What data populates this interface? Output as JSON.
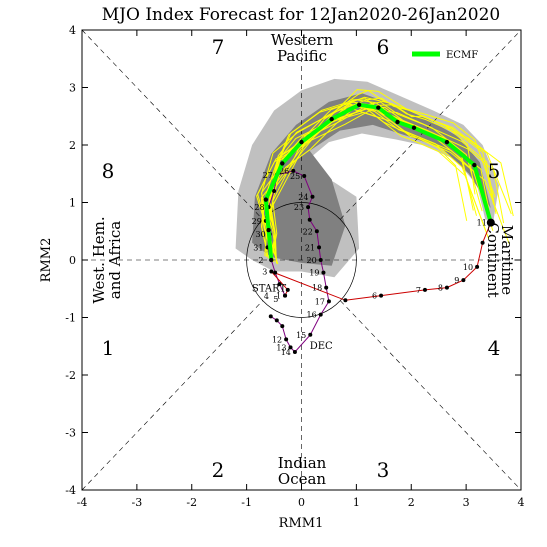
{
  "chart_data": {
    "type": "line",
    "title": "MJO Index Forecast for 12Jan2020-26Jan2020",
    "xlabel": "RMM1",
    "ylabel": "RMM2",
    "xlim": [
      -4,
      4
    ],
    "ylim": [
      -4,
      4
    ],
    "xticks": [
      "-4",
      "-3",
      "-2",
      "-1",
      "0",
      "1",
      "2",
      "3",
      "4"
    ],
    "yticks": [
      "-4",
      "-3",
      "-2",
      "-1",
      "0",
      "1",
      "2",
      "3",
      "4"
    ],
    "legend": {
      "placement": "top-right",
      "entries": [
        {
          "name": "ECMF",
          "color": "#00ff00"
        }
      ]
    },
    "phases": [
      "1",
      "2",
      "3",
      "4",
      "5",
      "6",
      "7",
      "8"
    ],
    "regions": {
      "top": [
        "Western",
        "Pacific"
      ],
      "bottom": [
        "Indian",
        "Ocean"
      ],
      "left": [
        "West. Hem.",
        "and Africa"
      ],
      "right": [
        "Maritime",
        "Continent"
      ]
    },
    "path_labels": {
      "start": "START",
      "dec": "DEC"
    },
    "colors": {
      "observed_dec": "#7f007f",
      "observed_jan": "#cc0000",
      "ensemble": "#ffff00",
      "spread_outer": "#c0c0c0",
      "spread_inner": "#808080",
      "ensemble_mean": "#00ff00"
    },
    "observed_dec": [
      {
        "x": -0.56,
        "y": -0.98
      },
      {
        "x": -0.45,
        "y": -1.05
      },
      {
        "x": -0.35,
        "y": -1.15
      },
      {
        "x": -0.28,
        "y": -1.38
      },
      {
        "x": -0.2,
        "y": -1.52
      },
      {
        "x": -0.12,
        "y": -1.6
      },
      {
        "x": 0.16,
        "y": -1.3
      },
      {
        "x": 0.35,
        "y": -0.95
      },
      {
        "x": 0.5,
        "y": -0.72
      },
      {
        "x": 0.45,
        "y": -0.48
      },
      {
        "x": 0.4,
        "y": -0.22
      },
      {
        "x": 0.35,
        "y": 0.0
      },
      {
        "x": 0.32,
        "y": 0.22
      },
      {
        "x": 0.28,
        "y": 0.5
      },
      {
        "x": 0.15,
        "y": 0.7
      },
      {
        "x": 0.12,
        "y": 0.92
      },
      {
        "x": 0.2,
        "y": 1.1
      },
      {
        "x": 0.05,
        "y": 1.46
      },
      {
        "x": -0.15,
        "y": 1.55
      },
      {
        "x": -0.45,
        "y": 1.48
      },
      {
        "x": -0.5,
        "y": 1.2
      },
      {
        "x": -0.6,
        "y": 0.92
      },
      {
        "x": -0.65,
        "y": 0.68
      },
      {
        "x": -0.58,
        "y": 0.45
      },
      {
        "x": -0.62,
        "y": 0.22
      },
      {
        "x": -0.55,
        "y": 0.0
      },
      {
        "x": -0.48,
        "y": -0.22
      },
      {
        "x": -0.4,
        "y": -0.42
      },
      {
        "x": -0.3,
        "y": -0.62
      }
    ],
    "observed_jan": [
      {
        "x": -0.3,
        "y": -0.62
      },
      {
        "x": -0.25,
        "y": -0.52
      },
      {
        "x": -0.55,
        "y": -0.2
      },
      {
        "x": 0.8,
        "y": -0.7
      },
      {
        "x": 1.45,
        "y": -0.62
      },
      {
        "x": 2.25,
        "y": -0.52
      },
      {
        "x": 2.65,
        "y": -0.48
      },
      {
        "x": 2.95,
        "y": -0.35
      },
      {
        "x": 3.2,
        "y": -0.12
      },
      {
        "x": 3.3,
        "y": 0.3
      },
      {
        "x": 3.45,
        "y": 0.65
      }
    ],
    "observed_labels": [
      {
        "label": "1",
        "x": -0.3,
        "y": -0.62
      },
      {
        "label": "2",
        "x": -0.62,
        "y": 0.0
      },
      {
        "label": "3",
        "x": -0.55,
        "y": -0.2
      },
      {
        "label": "4",
        "x": -0.52,
        "y": -0.63
      },
      {
        "label": "5",
        "x": -0.35,
        "y": -0.68
      },
      {
        "label": "6",
        "x": 1.45,
        "y": -0.62
      },
      {
        "label": "7",
        "x": 2.25,
        "y": -0.52
      },
      {
        "label": "8",
        "x": 2.65,
        "y": -0.48
      },
      {
        "label": "9",
        "x": 2.95,
        "y": -0.35
      },
      {
        "label": "10",
        "x": 3.2,
        "y": -0.12
      },
      {
        "label": "11",
        "x": 3.45,
        "y": 0.65
      },
      {
        "label": "12",
        "x": -0.28,
        "y": -1.38
      },
      {
        "label": "13",
        "x": -0.2,
        "y": -1.52
      },
      {
        "label": "14",
        "x": -0.12,
        "y": -1.6
      },
      {
        "label": "15",
        "x": 0.16,
        "y": -1.3
      },
      {
        "label": "16",
        "x": 0.35,
        "y": -0.95
      },
      {
        "label": "17",
        "x": 0.5,
        "y": -0.72
      },
      {
        "label": "18",
        "x": 0.45,
        "y": -0.48
      },
      {
        "label": "19",
        "x": 0.4,
        "y": -0.22
      },
      {
        "label": "20",
        "x": 0.35,
        "y": 0.0
      },
      {
        "label": "21",
        "x": 0.32,
        "y": 0.22
      },
      {
        "label": "22",
        "x": 0.28,
        "y": 0.5
      },
      {
        "label": "23",
        "x": 0.12,
        "y": 0.92
      },
      {
        "label": "24",
        "x": 0.2,
        "y": 1.1
      },
      {
        "label": "25",
        "x": 0.05,
        "y": 1.46
      },
      {
        "label": "26",
        "x": -0.15,
        "y": 1.55
      },
      {
        "label": "27",
        "x": -0.45,
        "y": 1.48
      },
      {
        "label": "28",
        "x": -0.6,
        "y": 0.92
      },
      {
        "label": "29",
        "x": -0.65,
        "y": 0.68
      },
      {
        "label": "30",
        "x": -0.58,
        "y": 0.45
      },
      {
        "label": "31",
        "x": -0.62,
        "y": 0.22
      }
    ],
    "ensemble_mean": [
      {
        "x": -0.55,
        "y": 0.0
      },
      {
        "x": -0.6,
        "y": 0.52
      },
      {
        "x": -0.65,
        "y": 1.05
      },
      {
        "x": -0.35,
        "y": 1.68
      },
      {
        "x": 0.0,
        "y": 2.05
      },
      {
        "x": 0.55,
        "y": 2.45
      },
      {
        "x": 1.05,
        "y": 2.7
      },
      {
        "x": 1.4,
        "y": 2.65
      },
      {
        "x": 1.75,
        "y": 2.4
      },
      {
        "x": 2.05,
        "y": 2.3
      },
      {
        "x": 2.65,
        "y": 2.05
      },
      {
        "x": 3.15,
        "y": 1.65
      },
      {
        "x": 3.45,
        "y": 0.65
      }
    ],
    "spread_outer": [
      {
        "x": -1.2,
        "y": 0.2
      },
      {
        "x": -1.15,
        "y": 1.2
      },
      {
        "x": -0.9,
        "y": 2.0
      },
      {
        "x": -0.5,
        "y": 2.6
      },
      {
        "x": 0.0,
        "y": 2.95
      },
      {
        "x": 0.6,
        "y": 3.15
      },
      {
        "x": 1.2,
        "y": 3.1
      },
      {
        "x": 1.8,
        "y": 2.85
      },
      {
        "x": 2.4,
        "y": 2.6
      },
      {
        "x": 2.95,
        "y": 2.35
      },
      {
        "x": 3.3,
        "y": 2.0
      },
      {
        "x": 3.6,
        "y": 1.3
      },
      {
        "x": 3.5,
        "y": 0.7
      },
      {
        "x": 3.35,
        "y": 0.7
      },
      {
        "x": 3.2,
        "y": 1.3
      },
      {
        "x": 2.8,
        "y": 1.75
      },
      {
        "x": 2.2,
        "y": 2.0
      },
      {
        "x": 1.7,
        "y": 2.1
      },
      {
        "x": 1.1,
        "y": 2.2
      },
      {
        "x": 0.5,
        "y": 2.05
      },
      {
        "x": 0.0,
        "y": 1.65
      },
      {
        "x": 0.6,
        "y": 1.35
      },
      {
        "x": 1.0,
        "y": 1.1
      },
      {
        "x": 1.05,
        "y": 0.2
      },
      {
        "x": 0.6,
        "y": -0.3
      },
      {
        "x": 0.0,
        "y": -0.2
      },
      {
        "x": -0.5,
        "y": -0.2
      },
      {
        "x": -0.9,
        "y": 0.0
      }
    ],
    "spread_inner": [
      {
        "x": -0.9,
        "y": 0.3
      },
      {
        "x": -0.85,
        "y": 1.1
      },
      {
        "x": -0.55,
        "y": 1.85
      },
      {
        "x": -0.1,
        "y": 2.35
      },
      {
        "x": 0.5,
        "y": 2.75
      },
      {
        "x": 1.1,
        "y": 2.9
      },
      {
        "x": 1.7,
        "y": 2.7
      },
      {
        "x": 2.3,
        "y": 2.45
      },
      {
        "x": 2.85,
        "y": 2.15
      },
      {
        "x": 3.25,
        "y": 1.7
      },
      {
        "x": 3.45,
        "y": 0.9
      },
      {
        "x": 3.05,
        "y": 1.5
      },
      {
        "x": 2.55,
        "y": 1.95
      },
      {
        "x": 1.95,
        "y": 2.15
      },
      {
        "x": 1.3,
        "y": 2.35
      },
      {
        "x": 0.7,
        "y": 2.25
      },
      {
        "x": 0.15,
        "y": 1.9
      },
      {
        "x": 0.55,
        "y": 1.4
      },
      {
        "x": 0.8,
        "y": 0.6
      },
      {
        "x": 0.55,
        "y": -0.1
      },
      {
        "x": 0.0,
        "y": -0.05
      },
      {
        "x": -0.55,
        "y": 0.05
      }
    ],
    "ensemble_offsets": [
      [
        0.0,
        0.0
      ],
      [
        0.18,
        0.1
      ],
      [
        -0.2,
        0.14
      ],
      [
        0.1,
        -0.18
      ],
      [
        -0.14,
        -0.1
      ],
      [
        0.26,
        0.22
      ],
      [
        -0.26,
        0.26
      ],
      [
        0.04,
        0.32
      ],
      [
        0.32,
        -0.06
      ],
      [
        -0.32,
        -0.04
      ],
      [
        0.14,
        0.4
      ],
      [
        -0.08,
        -0.26
      ],
      [
        0.22,
        -0.3
      ],
      [
        -0.36,
        0.18
      ],
      [
        0.4,
        0.12
      ],
      [
        -0.2,
        0.44
      ]
    ]
  }
}
